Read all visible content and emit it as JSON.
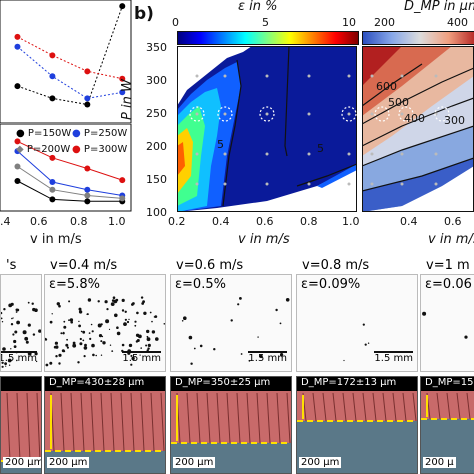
{
  "panel_b": {
    "label": "b)",
    "x_axis_label": "v in m/s",
    "y_axis_label": "P in W",
    "x_ticks": [
      "0.2",
      "0.4",
      "0.6",
      "0.8",
      "1.0"
    ],
    "y_ticks": [
      "100",
      "150",
      "200",
      "250",
      "300",
      "350"
    ],
    "left_colorbar": {
      "title": "ε in %",
      "ticks": [
        "0",
        "5",
        "10"
      ]
    },
    "right_colorbar": {
      "title": "D_MP in μm",
      "ticks": [
        "200",
        "400"
      ]
    },
    "contour_labels_left": [
      "5",
      "5"
    ],
    "contour_labels_right": [
      "600",
      "500",
      "400",
      "300"
    ]
  },
  "panel_a_partial": {
    "x_axis_label": "v in m/s",
    "x_ticks": [
      ".4",
      "0.6",
      "0.8",
      "1.0"
    ],
    "legend": [
      "P=150W",
      "P=250W",
      "P=200W",
      "P=300W"
    ]
  },
  "chart_data": [
    {
      "type": "line",
      "title": "",
      "xlabel": "v in m/s",
      "ylabel": "",
      "x": [
        0.4,
        0.6,
        0.8,
        1.0
      ],
      "series": [
        {
          "name": "P=150W",
          "values": [
            0.31,
            0.12,
            0.1,
            0.1
          ]
        },
        {
          "name": "P=250W",
          "values": [
            0.62,
            0.3,
            0.22,
            0.16
          ]
        },
        {
          "name": "P=200W",
          "values": [
            0.46,
            0.22,
            0.16,
            0.13
          ]
        },
        {
          "name": "P=300W",
          "values": [
            0.72,
            0.55,
            0.44,
            0.32
          ]
        }
      ],
      "colors": [
        "#000000",
        "#1f3fdd",
        "#808080",
        "#dd1010"
      ]
    },
    {
      "type": "line",
      "title": "",
      "xlabel": "v in m/s",
      "ylabel": "",
      "x": [
        0.4,
        0.6,
        0.8,
        1.0
      ],
      "series": [
        {
          "name": "P=150W",
          "values": [
            0.3,
            0.2,
            0.15,
            0.95
          ]
        },
        {
          "name": "P=250W",
          "values": [
            0.62,
            0.38,
            0.2,
            0.25
          ]
        },
        {
          "name": "P=300W",
          "values": [
            0.7,
            0.55,
            0.42,
            0.36
          ]
        }
      ],
      "colors": [
        "#000000",
        "#1f3fdd",
        "#dd1010"
      ]
    }
  ],
  "micrographs": [
    {
      "v": "'s",
      "eps": "",
      "scale": "1.5 mm"
    },
    {
      "v": "v=0.4 m/s",
      "eps": "ε=5.8%",
      "scale": "1.5 mm"
    },
    {
      "v": "v=0.6 m/s",
      "eps": "ε=0.5%",
      "scale": "1.5 mm"
    },
    {
      "v": "v=0.8 m/s",
      "eps": "ε=0.09%",
      "scale": "1.5 mm"
    },
    {
      "v": "v=1 m",
      "eps": "ε=0.06",
      "scale": ""
    }
  ],
  "cross_sections": [
    {
      "dmp": "",
      "scale": "200 μm"
    },
    {
      "dmp": "D_MP=430±28 μm",
      "scale": "200 μm"
    },
    {
      "dmp": "D_MP=350±25 μm",
      "scale": "200 μm"
    },
    {
      "dmp": "D_MP=172±13 μm",
      "scale": "200 μm"
    },
    {
      "dmp": "D_MP=151±1",
      "scale": "200 μ"
    }
  ]
}
